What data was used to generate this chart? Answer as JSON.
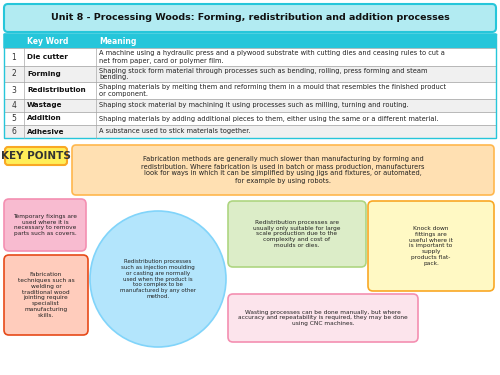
{
  "title": "Unit 8 - Processing Woods: Forming, redistribution and addition processes",
  "title_bg": "#b2ebf2",
  "title_border": "#26c6da",
  "table_header": [
    "Key Word",
    "Meaning"
  ],
  "table_header_bg": "#26c6da",
  "table_rows": [
    [
      "1",
      "Die cutter",
      "A machine using a hydraulic press and a plywood substrate with cutting dies and ceasing rules to cut a\nnet from paper, card or polymer film."
    ],
    [
      "2",
      "Forming",
      "Shaping stock form material through processes such as bending, rolling, press forming and steam\nbending."
    ],
    [
      "3",
      "Redistribution",
      "Shaping materials by melting them and reforming them in a mould that resembles the finished product\nor component."
    ],
    [
      "4",
      "Wastage",
      "Shaping stock material by machining it using processes such as milling, turning and routing."
    ],
    [
      "5",
      "Addition",
      "Shaping materials by adding additional pieces to them, either using the same or a different material."
    ],
    [
      "6",
      "Adhesive",
      "A substance used to stick materials together."
    ]
  ],
  "key_points_label": "KEY POINTS",
  "key_points_label_bg": "#ffee58",
  "key_points_label_border": "#f9a825",
  "key_points_text": "Fabrication methods are generally much slower than manufacturing by forming and\nredistribution. Where fabrication is used in batch or mass production, manufacturers\nlook for ways in which it can be simplified by using jigs and fixtures, or automated,\nfor example by using robots.",
  "key_points_bg": "#ffe0b2",
  "key_points_border": "#ffb74d",
  "bubble1_text": "Temporary fixings are\nused where it is\nnecessary to remove\nparts such as covers.",
  "bubble1_bg": "#f8bbd0",
  "bubble1_border": "#f48fb1",
  "bubble2_text": "Fabrication\ntechniques such as\nwelding or\ntraditional wood\njointing require\nspecialist\nmanufacturing\nskills.",
  "bubble2_bg": "#ffccbc",
  "bubble2_border": "#e64a19",
  "bubble3_text": "Redistribution processes\nsuch as injection moulding\nor casting are normally\nused when the product is\ntoo complex to be\nmanufactured by any other\nmethod.",
  "bubble3_bg": "#b3e5fc",
  "bubble3_border": "#81d4fa",
  "bubble4_text": "Redistribution processes are\nusually only suitable for large\nscale production due to the\ncomplexity and cost of\nmoulds or dies.",
  "bubble4_bg": "#dcedc8",
  "bubble4_border": "#aed581",
  "bubble5_text": "Wasting processes can be done manually, but where\naccuracy and repeatability is required, they may be done\nusing CNC machines.",
  "bubble5_bg": "#fce4ec",
  "bubble5_border": "#f48fb1",
  "bubble6_text": "Knock down\nfittings are\nuseful where it\nis important to\nsupply\nproducts flat-\npack.",
  "bubble6_bg": "#fff9c4",
  "bubble6_border": "#f9a825"
}
